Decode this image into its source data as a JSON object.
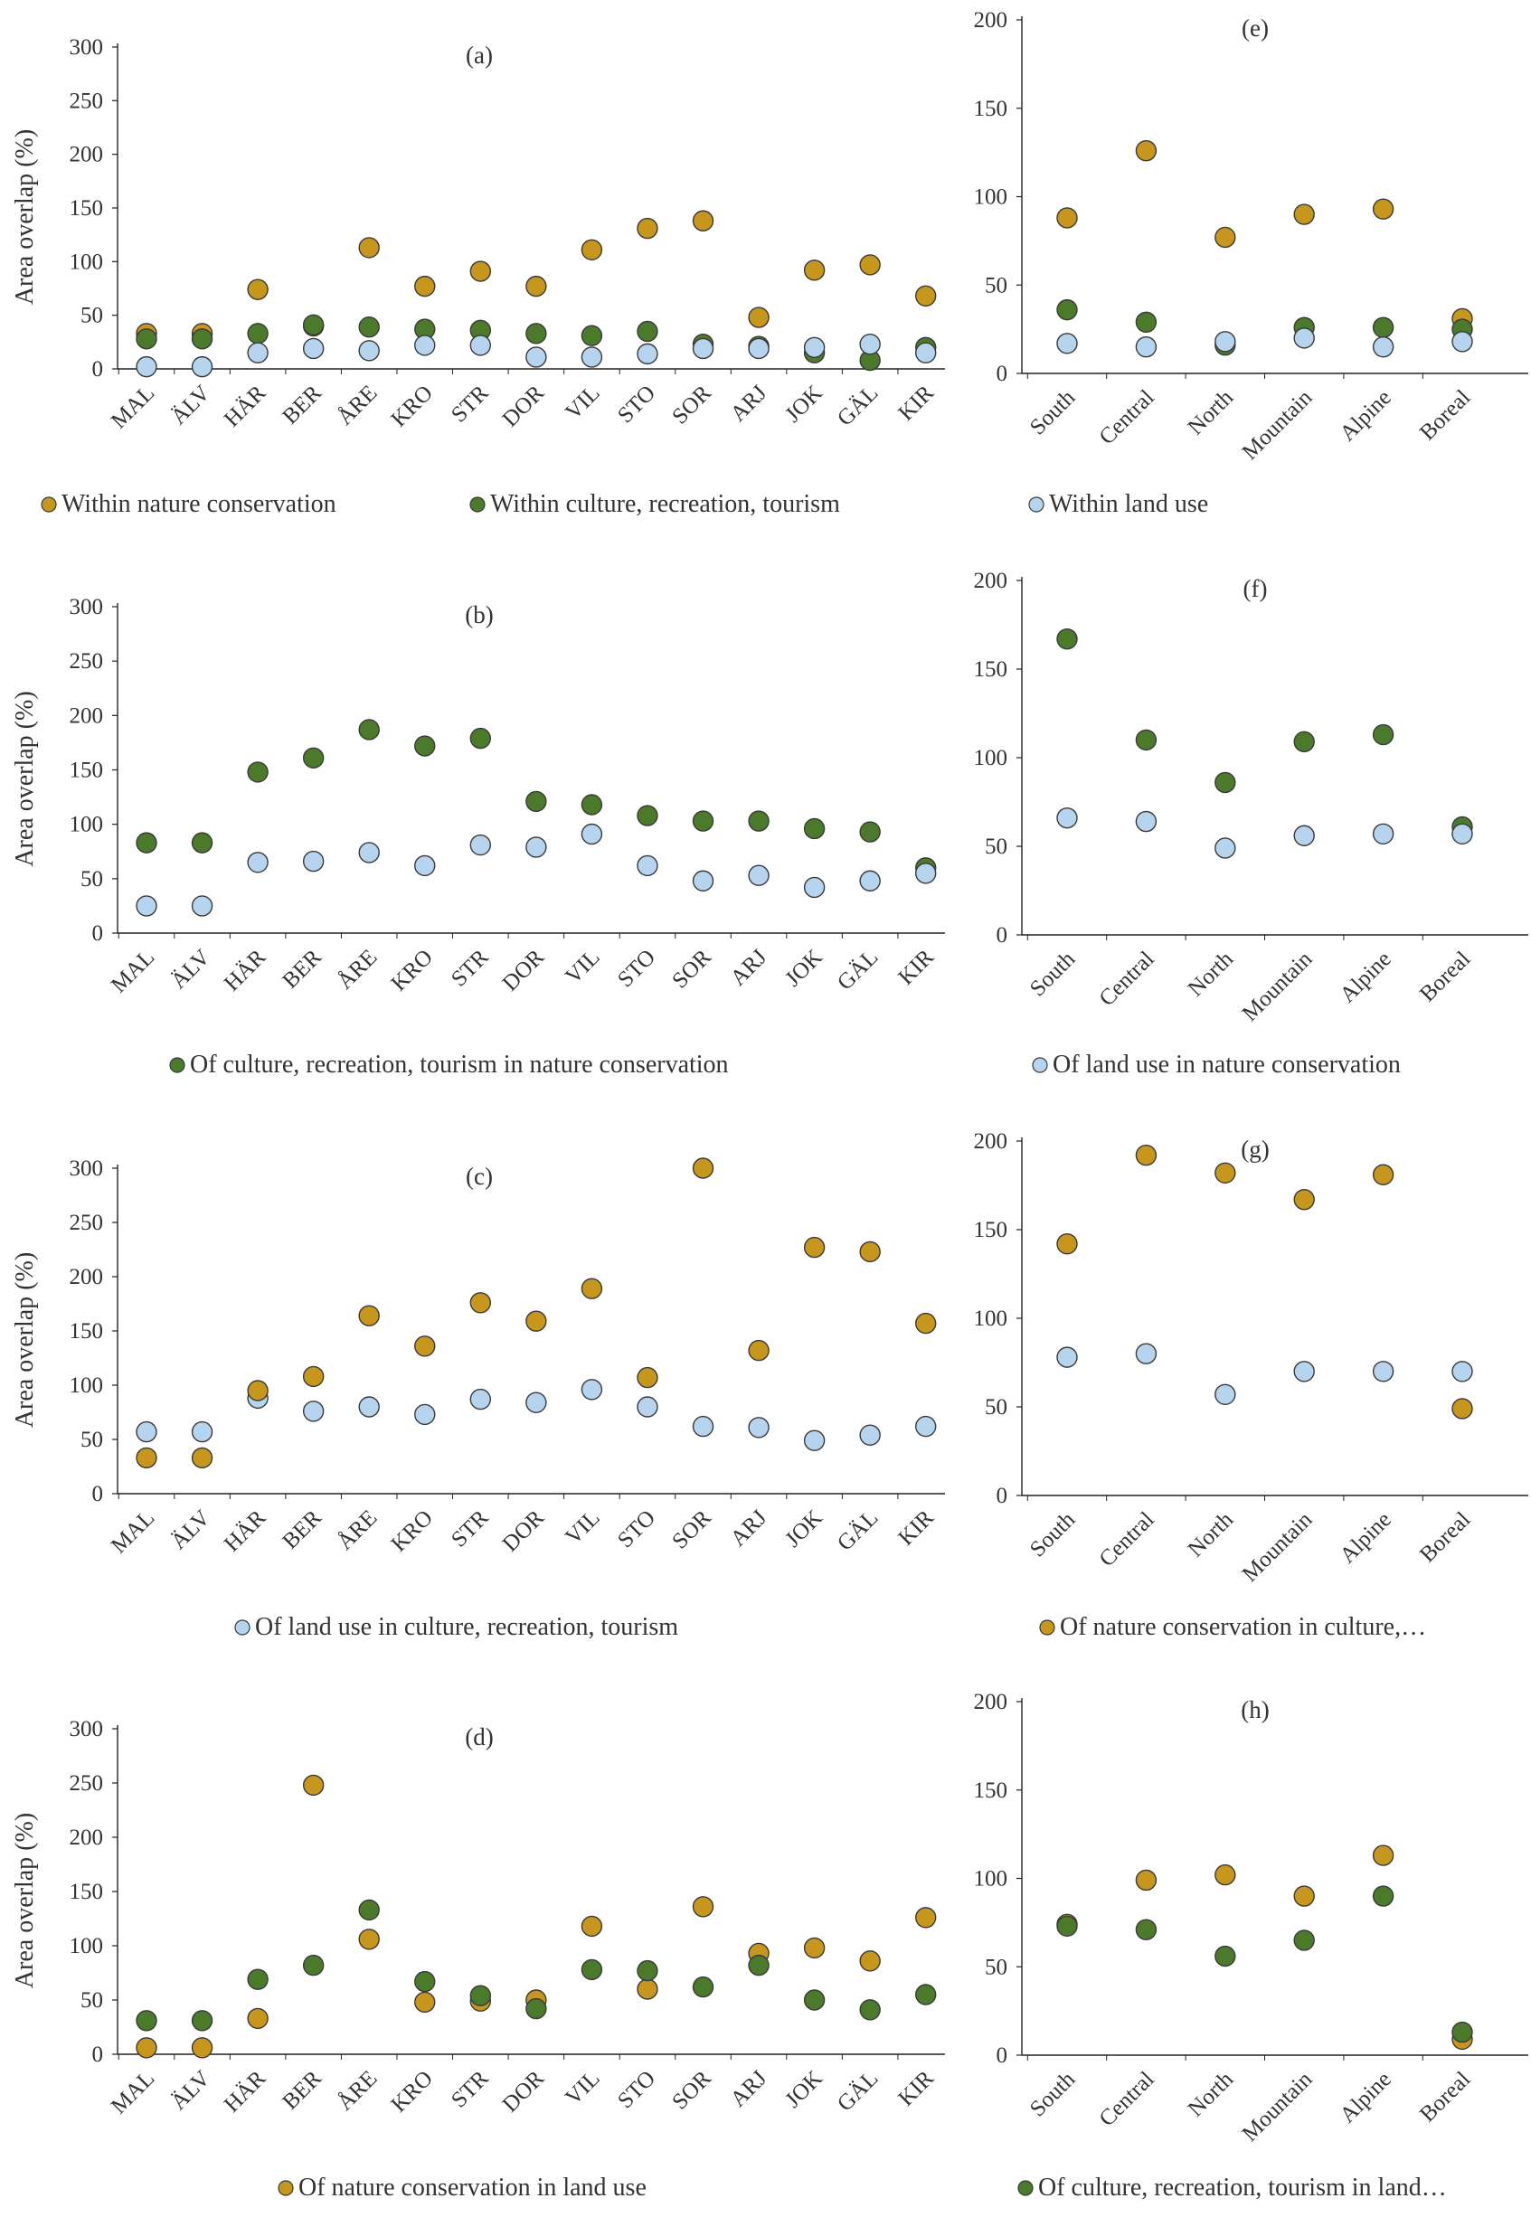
{
  "colors": {
    "nature": "#c6961d",
    "culture": "#4c7a2b",
    "landuse": "#b7d4ef",
    "marker_stroke": "#3a3a3a",
    "axis": "#222222"
  },
  "chart_data": [
    {
      "id": "a",
      "type": "scatter",
      "label": "(a)",
      "ylabel": "Area overlap (%)",
      "ylim": [
        0,
        300
      ],
      "yticks": [
        0,
        50,
        100,
        150,
        200,
        250,
        300
      ],
      "categories": [
        "MAL",
        "ÄLV",
        "HÄR",
        "BER",
        "ÅRE",
        "KRO",
        "STR",
        "DOR",
        "VIL",
        "STO",
        "SOR",
        "ARJ",
        "JOK",
        "GÄL",
        "KIR"
      ],
      "series": [
        {
          "name": "Within nature conservation",
          "color": "nature",
          "values": [
            33,
            33,
            74,
            40,
            113,
            77,
            91,
            77,
            111,
            131,
            138,
            48,
            92,
            97,
            68
          ]
        },
        {
          "name": "Within culture, recreation, tourism",
          "color": "culture",
          "values": [
            28,
            28,
            33,
            41,
            39,
            37,
            36,
            33,
            31,
            35,
            23,
            21,
            15,
            8,
            20
          ]
        },
        {
          "name": "Within land use",
          "color": "landuse",
          "values": [
            2,
            2,
            15,
            19,
            17,
            22,
            22,
            11,
            11,
            14,
            19,
            19,
            20,
            23,
            15
          ]
        }
      ]
    },
    {
      "id": "b",
      "type": "scatter",
      "label": "(b)",
      "ylabel": "Area overlap (%)",
      "ylim": [
        0,
        300
      ],
      "yticks": [
        0,
        50,
        100,
        150,
        200,
        250,
        300
      ],
      "categories": [
        "MAL",
        "ÄLV",
        "HÄR",
        "BER",
        "ÅRE",
        "KRO",
        "STR",
        "DOR",
        "VIL",
        "STO",
        "SOR",
        "ARJ",
        "JOK",
        "GÄL",
        "KIR"
      ],
      "series": [
        {
          "name": "Of culture, recreation, tourism in nature conservation",
          "color": "culture",
          "values": [
            83,
            83,
            148,
            161,
            187,
            172,
            179,
            121,
            118,
            108,
            103,
            103,
            96,
            93,
            60
          ]
        },
        {
          "name": "Of land use in nature conservation",
          "color": "landuse",
          "values": [
            25,
            25,
            65,
            66,
            74,
            62,
            81,
            79,
            91,
            62,
            48,
            53,
            42,
            48,
            55
          ]
        }
      ]
    },
    {
      "id": "c",
      "type": "scatter",
      "label": "(c)",
      "ylabel": "Area overlap (%)",
      "ylim": [
        0,
        300
      ],
      "yticks": [
        0,
        50,
        100,
        150,
        200,
        250,
        300
      ],
      "categories": [
        "MAL",
        "ÄLV",
        "HÄR",
        "BER",
        "ÅRE",
        "KRO",
        "STR",
        "DOR",
        "VIL",
        "STO",
        "SOR",
        "ARJ",
        "JOK",
        "GÄL",
        "KIR"
      ],
      "series": [
        {
          "name": "Of land use in culture, recreation, tourism",
          "color": "landuse",
          "values": [
            57,
            57,
            88,
            76,
            80,
            73,
            87,
            84,
            96,
            80,
            62,
            61,
            49,
            54,
            62
          ]
        },
        {
          "name": "Of nature conservation in culture,…",
          "color": "nature",
          "values": [
            33,
            33,
            95,
            108,
            164,
            136,
            176,
            159,
            189,
            107,
            300,
            132,
            227,
            223,
            157
          ]
        }
      ]
    },
    {
      "id": "d",
      "type": "scatter",
      "label": "(d)",
      "ylabel": "Area overlap (%)",
      "ylim": [
        0,
        300
      ],
      "yticks": [
        0,
        50,
        100,
        150,
        200,
        250,
        300
      ],
      "categories": [
        "MAL",
        "ÄLV",
        "HÄR",
        "BER",
        "ÅRE",
        "KRO",
        "STR",
        "DOR",
        "VIL",
        "STO",
        "SOR",
        "ARJ",
        "JOK",
        "GÄL",
        "KIR"
      ],
      "series": [
        {
          "name": "Of nature conservation in land use",
          "color": "nature",
          "values": [
            6,
            6,
            33,
            248,
            106,
            48,
            49,
            50,
            118,
            60,
            136,
            93,
            98,
            86,
            126
          ]
        },
        {
          "name": "Of culture, recreation, tourism in land use",
          "color": "culture",
          "values": [
            31,
            31,
            69,
            82,
            133,
            67,
            54,
            42,
            78,
            77,
            62,
            82,
            50,
            41,
            55
          ]
        }
      ]
    },
    {
      "id": "e",
      "type": "scatter",
      "label": "(e)",
      "ylabel": "",
      "ylim": [
        0,
        200
      ],
      "yticks": [
        0,
        50,
        100,
        150,
        200
      ],
      "categories": [
        "South",
        "Central",
        "North",
        "Mountain",
        "Alpine",
        "Boreal"
      ],
      "series": [
        {
          "name": "Within nature conservation",
          "color": "nature",
          "values": [
            88,
            126,
            77,
            90,
            93,
            31
          ]
        },
        {
          "name": "Within culture, recreation, tourism",
          "color": "culture",
          "values": [
            36,
            29,
            16,
            26,
            26,
            25
          ]
        },
        {
          "name": "Within land use",
          "color": "landuse",
          "values": [
            17,
            15,
            18,
            20,
            15,
            18
          ]
        }
      ]
    },
    {
      "id": "f",
      "type": "scatter",
      "label": "(f)",
      "ylabel": "",
      "ylim": [
        0,
        200
      ],
      "yticks": [
        0,
        50,
        100,
        150,
        200
      ],
      "categories": [
        "South",
        "Central",
        "North",
        "Mountain",
        "Alpine",
        "Boreal"
      ],
      "series": [
        {
          "name": "Of culture, recreation, tourism in nature conservation",
          "color": "culture",
          "values": [
            167,
            110,
            86,
            109,
            113,
            61
          ]
        },
        {
          "name": "Of land use in nature conservation",
          "color": "landuse",
          "values": [
            66,
            64,
            49,
            56,
            57,
            57
          ]
        }
      ]
    },
    {
      "id": "g",
      "type": "scatter",
      "label": "(g)",
      "ylabel": "",
      "ylim": [
        0,
        200
      ],
      "yticks": [
        0,
        50,
        100,
        150,
        200
      ],
      "categories": [
        "South",
        "Central",
        "North",
        "Mountain",
        "Alpine",
        "Boreal"
      ],
      "series": [
        {
          "name": "Of land use in culture, recreation, tourism",
          "color": "landuse",
          "values": [
            78,
            80,
            57,
            70,
            70,
            70
          ]
        },
        {
          "name": "Of nature conservation in culture,…",
          "color": "nature",
          "values": [
            142,
            192,
            182,
            167,
            181,
            49
          ]
        }
      ]
    },
    {
      "id": "h",
      "type": "scatter",
      "label": "(h)",
      "ylabel": "",
      "ylim": [
        0,
        200
      ],
      "yticks": [
        0,
        50,
        100,
        150,
        200
      ],
      "categories": [
        "South",
        "Central",
        "North",
        "Mountain",
        "Alpine",
        "Boreal"
      ],
      "series": [
        {
          "name": "Of nature conservation in land use",
          "color": "nature",
          "values": [
            74,
            99,
            102,
            90,
            113,
            9
          ]
        },
        {
          "name": "Of culture, recreation, tourism in land…",
          "color": "culture",
          "values": [
            73,
            71,
            56,
            65,
            90,
            13
          ]
        }
      ]
    }
  ],
  "legends": [
    {
      "row": 0,
      "items": [
        {
          "label": "Within nature conservation",
          "color": "nature"
        },
        {
          "label": "Within culture, recreation, tourism",
          "color": "culture"
        },
        {
          "label": "Within land use",
          "color": "landuse"
        }
      ]
    },
    {
      "row": 1,
      "items": [
        {
          "label": "Of culture, recreation, tourism in nature conservation",
          "color": "culture"
        },
        {
          "label": "Of land use in nature conservation",
          "color": "landuse"
        }
      ]
    },
    {
      "row": 2,
      "items": [
        {
          "label": "Of land use in culture, recreation, tourism",
          "color": "landuse"
        },
        {
          "label": "Of nature conservation in culture,…",
          "color": "nature"
        }
      ]
    },
    {
      "row": 3,
      "items": [
        {
          "label": "Of nature conservation in land use",
          "color": "nature"
        },
        {
          "label": "Of culture, recreation, tourism in land…",
          "color": "culture"
        }
      ]
    }
  ]
}
